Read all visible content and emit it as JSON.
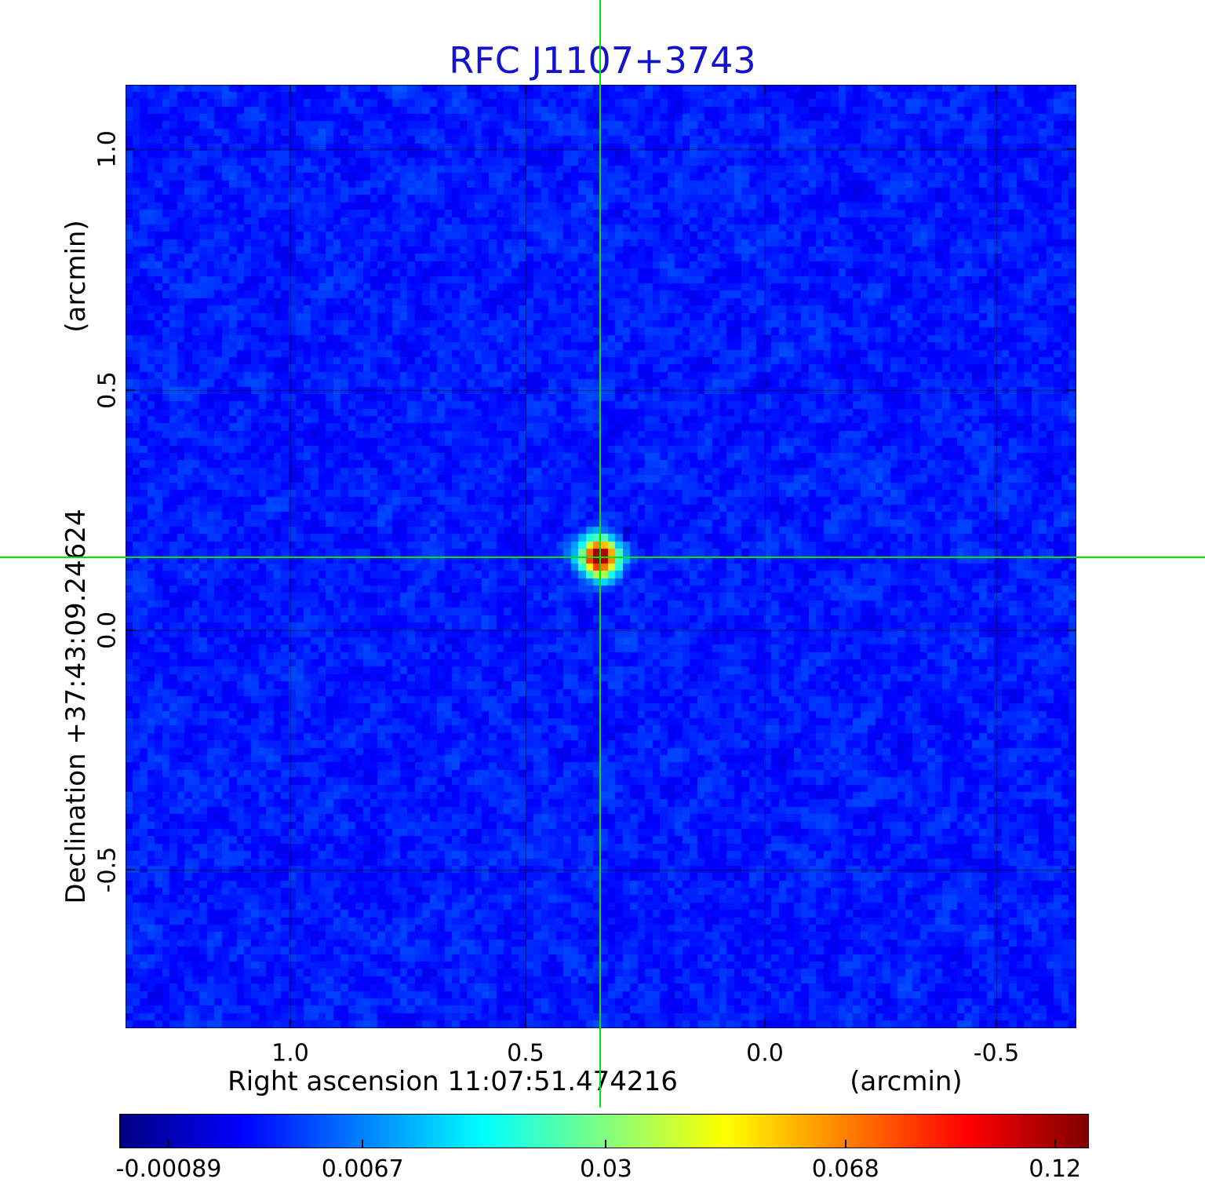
{
  "title": "RFC J1107+3743",
  "title_color": "#1414cc",
  "y_axis": {
    "unit_label": "(arcmin)",
    "axis_label": "Declination  +37:43:09.24624",
    "ticks": [
      "1.0",
      "0.5",
      "0.0",
      "-0.5"
    ]
  },
  "x_axis": {
    "axis_label": "Right ascension  11:07:51.474216",
    "unit_label": "(arcmin)",
    "ticks": [
      "1.0",
      "0.5",
      "0.0",
      "-0.5"
    ]
  },
  "colorbar": {
    "ticks": [
      "-0.00089",
      "0.0067",
      "0.03",
      "0.068",
      "0.12"
    ]
  },
  "chart_data": {
    "type": "heatmap",
    "title": "RFC J1107+3743",
    "xlabel": "Right ascension 11:07:51.474216 (arcmin)",
    "ylabel": "Declination +37:43:09.24624 (arcmin)",
    "x_ticks_arcmin": [
      1.0,
      0.5,
      0.0,
      -0.5
    ],
    "y_ticks_arcmin": [
      1.0,
      0.5,
      0.0,
      -0.5
    ],
    "x_range_arcmin": [
      1.35,
      -0.66
    ],
    "y_range_arcmin": [
      1.14,
      -0.83
    ],
    "grid": true,
    "colormap": "jet",
    "colorbar_ticks": [
      -0.00089,
      0.0067,
      0.03,
      0.068,
      0.12
    ],
    "colorbar_tick_positions": [
      0.051,
      0.251,
      0.502,
      0.749,
      0.965
    ],
    "colorbar_range": [
      -0.00089,
      0.12
    ],
    "background_mean_level": 0.0,
    "peak": {
      "value": 0.12,
      "x_arcmin": 0.35,
      "y_arcmin": 0.15,
      "note": "compact bright source at crosshair intersection"
    },
    "crosshair": {
      "color": "#00e400",
      "x_arcmin": 0.35,
      "y_arcmin": 0.15
    }
  }
}
